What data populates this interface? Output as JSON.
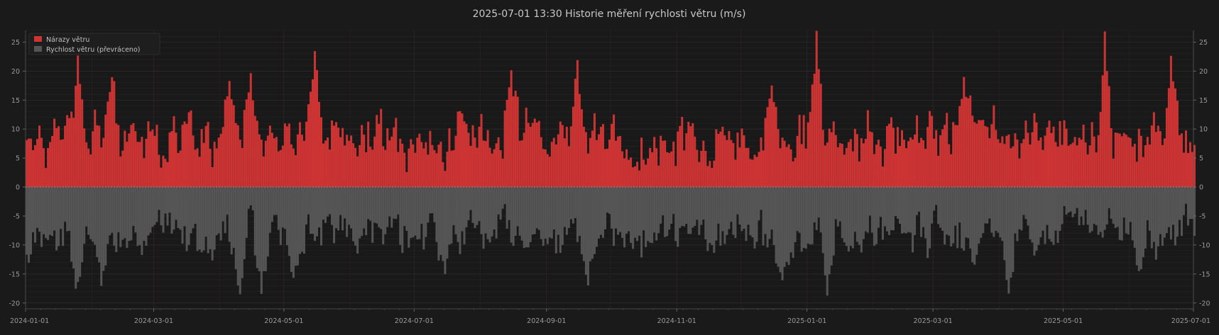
{
  "chart_data": {
    "type": "bar",
    "title": "2025-07-01  13:30  Historie měření rychlosti větru (m/s)",
    "xlabel": "",
    "ylabel": "",
    "x_range": [
      "2024-01-01",
      "2025-07-01"
    ],
    "ylim": [
      -21,
      27
    ],
    "y_ticks": [
      -20,
      -15,
      -10,
      -5,
      0,
      5,
      10,
      15,
      20,
      25
    ],
    "x_ticks": [
      "2024-01-01",
      "2024-03-01",
      "2024-05-01",
      "2024-07-01",
      "2024-09-01",
      "2024-11-01",
      "2025-01-01",
      "2025-03-01",
      "2025-05-01",
      "2025-07-01"
    ],
    "grid": true,
    "legend_position": "top-left",
    "series": [
      {
        "name": "Nárazy větru",
        "color": "#cc3333",
        "sampling": "daily",
        "typical_range": [
          3,
          14
        ],
        "peaks": [
          {
            "date": "2024-01-25",
            "value": 23
          },
          {
            "date": "2024-02-10",
            "value": 22
          },
          {
            "date": "2024-04-05",
            "value": 21
          },
          {
            "date": "2024-04-15",
            "value": 20
          },
          {
            "date": "2024-05-15",
            "value": 24
          },
          {
            "date": "2024-08-15",
            "value": 22
          },
          {
            "date": "2024-09-15",
            "value": 22
          },
          {
            "date": "2024-12-15",
            "value": 20
          },
          {
            "date": "2025-01-05",
            "value": 27
          },
          {
            "date": "2025-03-15",
            "value": 19
          },
          {
            "date": "2025-05-20",
            "value": 27
          },
          {
            "date": "2025-06-20",
            "value": 23
          }
        ]
      },
      {
        "name": "Rychlost větru (převráceno)",
        "color": "#555555",
        "sampling": "daily",
        "typical_range": [
          -12,
          -4
        ],
        "troughs": [
          {
            "date": "2024-01-25",
            "value": -20
          },
          {
            "date": "2024-02-05",
            "value": -18
          },
          {
            "date": "2024-04-10",
            "value": -21
          },
          {
            "date": "2024-04-20",
            "value": -19
          },
          {
            "date": "2024-05-05",
            "value": -18
          },
          {
            "date": "2024-07-15",
            "value": -16
          },
          {
            "date": "2024-09-20",
            "value": -18
          },
          {
            "date": "2024-12-20",
            "value": -17
          },
          {
            "date": "2025-01-10",
            "value": -19
          },
          {
            "date": "2025-04-05",
            "value": -20
          },
          {
            "date": "2025-06-05",
            "value": -17
          }
        ]
      }
    ]
  }
}
